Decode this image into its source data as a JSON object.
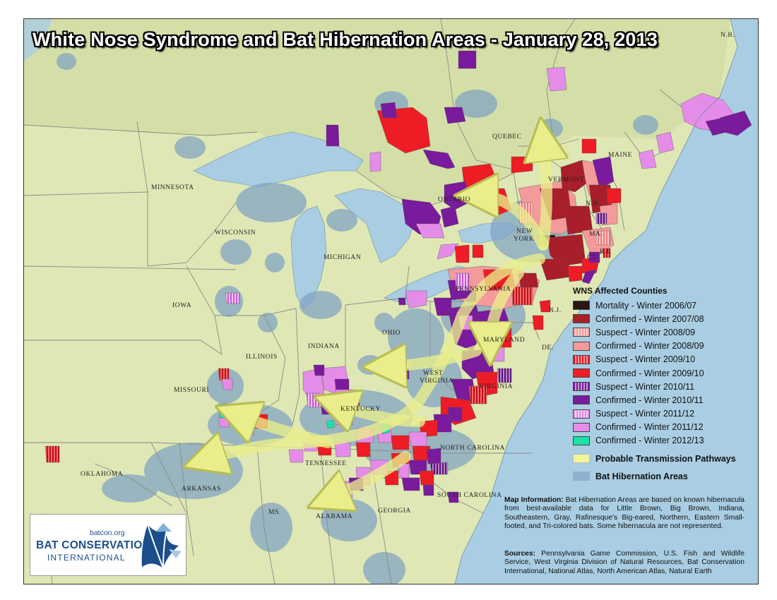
{
  "title": "White Nose Syndrome and Bat Hibernation Areas - January 28, 2013",
  "labels": {
    "minnesota": "Minnesota",
    "wisconsin": "Wisconsin",
    "michigan": "Michigan",
    "iowa": "Iowa",
    "illinois": "Illinois",
    "indiana": "Indiana",
    "ohio": "Ohio",
    "missouri": "Missouri",
    "kentucky": "Kentucky",
    "tennessee": "Tennessee",
    "oklahoma": "Oklahoma",
    "arkansas": "Arkansas",
    "ms": "Ms.",
    "alabama": "Alabama",
    "georgia": "Georgia",
    "south_carolina": "South Carolina",
    "north_carolina": "North Carolina",
    "virginia": "Virginia",
    "west": "West",
    "virginia2": "Virginia",
    "maryland": "Maryland",
    "de": "De.",
    "nj": "N.J.",
    "pennsylvania": "Pennsylvania",
    "new": "New",
    "york": "York",
    "ontario": "Ontario",
    "quebec": "Quebec",
    "vermont": "Vermont",
    "maine": "Maine",
    "nb": "N.B.",
    "nh": "N.H.",
    "ma": "Ma.",
    "ri": "R.I.",
    "ct": "Ct."
  },
  "legend": {
    "title": "WNS Affected Counties",
    "items": [
      {
        "label": "Mortality - Winter 2006/07",
        "color": "#2a1414",
        "pattern": "solid"
      },
      {
        "label": "Confirmed - Winter 2007/08",
        "color": "#a81e2a",
        "pattern": "solid"
      },
      {
        "label": "Suspect - Winter 2008/09",
        "color": "#f59a9a",
        "pattern": "hatch"
      },
      {
        "label": "Confirmed - Winter 2008/09",
        "color": "#f59a9a",
        "pattern": "solid"
      },
      {
        "label": "Suspect - Winter 2009/10",
        "color": "#ee1c24",
        "pattern": "hatch"
      },
      {
        "label": "Confirmed - Winter 2009/10",
        "color": "#ee1c24",
        "pattern": "solid"
      },
      {
        "label": "Suspect - Winter 2010/11",
        "color": "#7a1a9c",
        "pattern": "hatch"
      },
      {
        "label": "Confirmed - Winter 2010/11",
        "color": "#7a1a9c",
        "pattern": "solid"
      },
      {
        "label": "Suspect - Winter 2011/12",
        "color": "#e58ce9",
        "pattern": "hatch"
      },
      {
        "label": "Confirmed - Winter 2011/12",
        "color": "#e58ce9",
        "pattern": "solid"
      },
      {
        "label": "Confirmed - Winter 2012/13",
        "color": "#19e3a6",
        "pattern": "solid"
      }
    ],
    "pathways": {
      "label": "Probable Transmission Pathways",
      "color": "#f4f59a"
    },
    "hibernation": {
      "label": "Bat Hibernation Areas",
      "color": "#8fb1cf"
    }
  },
  "map_info": {
    "heading": "Map Information:",
    "text": "Bat Hibernation Areas are based on known hibernacula from best-available data for Little Brown, Big Brown, Indiana, Southeastern, Gray, Rafinesque's Big-eared, Northern, Eastern Small-footed, and Tri-colored bats. Some hibernacula are not represented."
  },
  "sources": {
    "heading": "Sources:",
    "text": "Pennsylvania Game Commission, U.S. Fish and Wildlife Service, West Virginia Division of Natural Resources, Bat Conservation International, National Atlas, North American Atlas, Natural Earth"
  },
  "logo": {
    "url": "batcon.org",
    "line1": "BAT CONSERVATION",
    "line2": "INTERNATIONAL"
  },
  "colors": {
    "land": "#dfe7b4",
    "water": "#a9cde2",
    "hibernation": "#7fa3c4",
    "pathway": "#f4f59a"
  }
}
